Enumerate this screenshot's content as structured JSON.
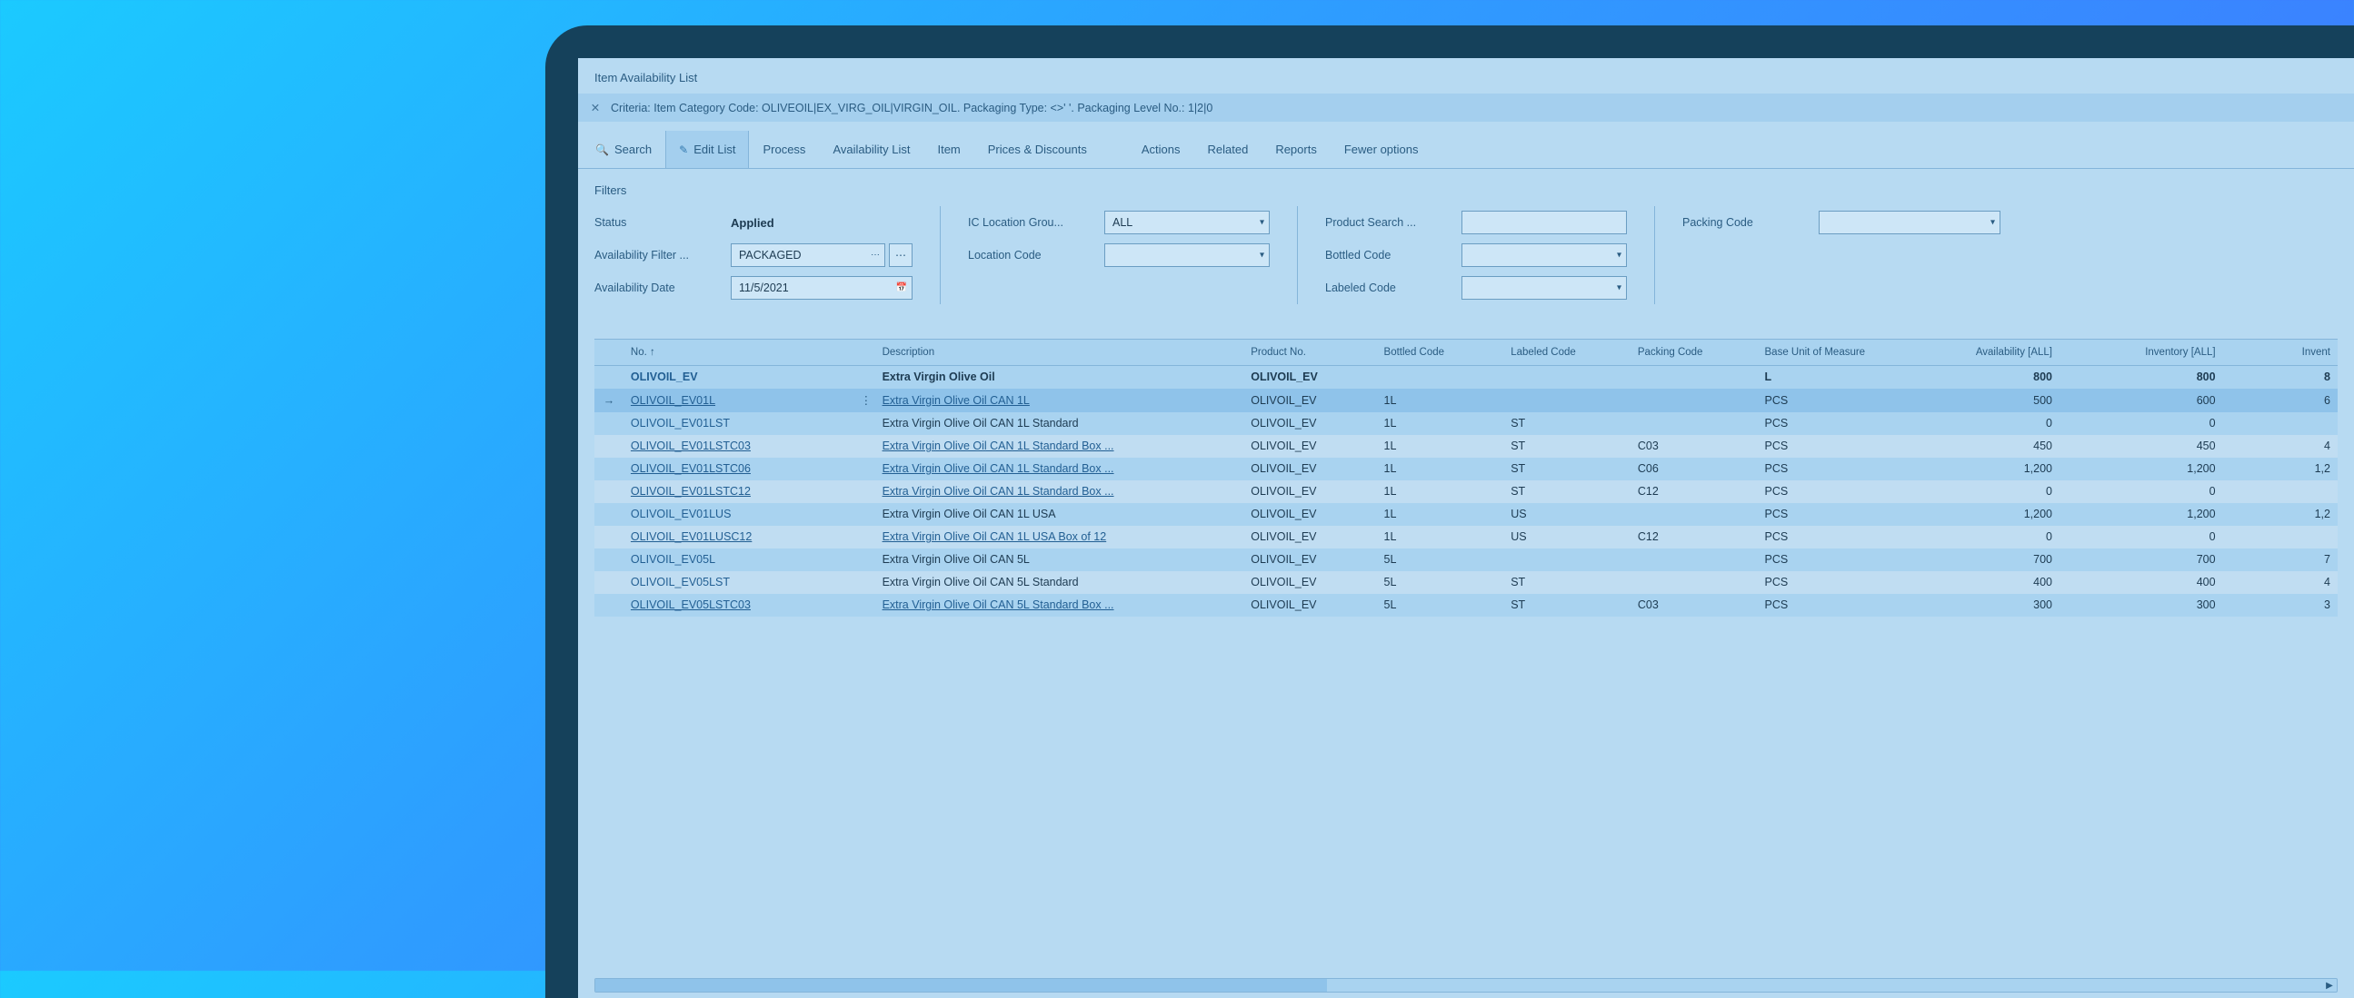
{
  "page": {
    "title": "Item Availability List"
  },
  "criteria": {
    "text": "Criteria: Item Category Code: OLIVEOIL|EX_VIRG_OIL|VIRGIN_OIL. Packaging Type: <>' '. Packaging Level No.: 1|2|0"
  },
  "toolbar": {
    "search": "Search",
    "editList": "Edit List",
    "process": "Process",
    "availabilityList": "Availability List",
    "item": "Item",
    "prices": "Prices & Discounts",
    "actions": "Actions",
    "related": "Related",
    "reports": "Reports",
    "fewer": "Fewer options"
  },
  "filters": {
    "title": "Filters",
    "status_label": "Status",
    "status_value": "Applied",
    "availFilter_label": "Availability Filter ...",
    "availFilter_value": "PACKAGED",
    "availDate_label": "Availability Date",
    "availDate_value": "11/5/2021",
    "icLocGroup_label": "IC Location Grou...",
    "icLocGroup_value": "ALL",
    "locCode_label": "Location Code",
    "locCode_value": "",
    "prodSearch_label": "Product Search ...",
    "prodSearch_value": "",
    "bottled_label": "Bottled Code",
    "bottled_value": "",
    "labeled_label": "Labeled Code",
    "labeled_value": "",
    "packing_label": "Packing Code",
    "packing_value": ""
  },
  "table": {
    "columns": {
      "no": "No. ↑",
      "desc": "Description",
      "prodno": "Product No.",
      "bottled": "Bottled Code",
      "labeled": "Labeled Code",
      "packing": "Packing Code",
      "buom": "Base Unit of Measure",
      "avail": "Availability [ALL]",
      "inv": "Inventory [ALL]",
      "inv2": "Invent"
    },
    "rows": [
      {
        "no": "OLIVOIL_EV",
        "desc": "Extra Virgin Olive Oil",
        "prodno": "OLIVOIL_EV",
        "bottled": "",
        "labeled": "",
        "packing": "",
        "buom": "L",
        "avail": "800",
        "inv": "800",
        "inv2": "8",
        "bold": true,
        "link": false
      },
      {
        "no": "OLIVOIL_EV01L",
        "desc": "Extra Virgin Olive Oil CAN 1L",
        "prodno": "OLIVOIL_EV",
        "bottled": "1L",
        "labeled": "",
        "packing": "",
        "buom": "PCS",
        "avail": "500",
        "inv": "600",
        "inv2": "6",
        "sel": true,
        "link": true
      },
      {
        "no": "OLIVOIL_EV01LST",
        "desc": "Extra Virgin Olive Oil CAN 1L Standard",
        "prodno": "OLIVOIL_EV",
        "bottled": "1L",
        "labeled": "ST",
        "packing": "",
        "buom": "PCS",
        "avail": "0",
        "inv": "0",
        "inv2": "",
        "link": false
      },
      {
        "no": "OLIVOIL_EV01LSTC03",
        "desc": "Extra Virgin Olive Oil CAN 1L Standard Box ...",
        "prodno": "OLIVOIL_EV",
        "bottled": "1L",
        "labeled": "ST",
        "packing": "C03",
        "buom": "PCS",
        "avail": "450",
        "inv": "450",
        "inv2": "4",
        "link": true,
        "zebra": true
      },
      {
        "no": "OLIVOIL_EV01LSTC06",
        "desc": "Extra Virgin Olive Oil CAN 1L Standard Box ...",
        "prodno": "OLIVOIL_EV",
        "bottled": "1L",
        "labeled": "ST",
        "packing": "C06",
        "buom": "PCS",
        "avail": "1,200",
        "inv": "1,200",
        "inv2": "1,2",
        "link": true
      },
      {
        "no": "OLIVOIL_EV01LSTC12",
        "desc": "Extra Virgin Olive Oil CAN 1L Standard Box ...",
        "prodno": "OLIVOIL_EV",
        "bottled": "1L",
        "labeled": "ST",
        "packing": "C12",
        "buom": "PCS",
        "avail": "0",
        "inv": "0",
        "inv2": "",
        "link": true,
        "zebra": true
      },
      {
        "no": "OLIVOIL_EV01LUS",
        "desc": "Extra Virgin Olive Oil CAN 1L USA",
        "prodno": "OLIVOIL_EV",
        "bottled": "1L",
        "labeled": "US",
        "packing": "",
        "buom": "PCS",
        "avail": "1,200",
        "inv": "1,200",
        "inv2": "1,2",
        "link": false
      },
      {
        "no": "OLIVOIL_EV01LUSC12",
        "desc": "Extra Virgin Olive Oil CAN 1L USA Box of 12",
        "prodno": "OLIVOIL_EV",
        "bottled": "1L",
        "labeled": "US",
        "packing": "C12",
        "buom": "PCS",
        "avail": "0",
        "inv": "0",
        "inv2": "",
        "link": true,
        "zebra": true
      },
      {
        "no": "OLIVOIL_EV05L",
        "desc": "Extra Virgin Olive Oil CAN 5L",
        "prodno": "OLIVOIL_EV",
        "bottled": "5L",
        "labeled": "",
        "packing": "",
        "buom": "PCS",
        "avail": "700",
        "inv": "700",
        "inv2": "7",
        "link": false
      },
      {
        "no": "OLIVOIL_EV05LST",
        "desc": "Extra Virgin Olive Oil CAN 5L Standard",
        "prodno": "OLIVOIL_EV",
        "bottled": "5L",
        "labeled": "ST",
        "packing": "",
        "buom": "PCS",
        "avail": "400",
        "inv": "400",
        "inv2": "4",
        "link": false,
        "zebra": true
      },
      {
        "no": "OLIVOIL_EV05LSTC03",
        "desc": "Extra Virgin Olive Oil CAN 5L Standard Box ...",
        "prodno": "OLIVOIL_EV",
        "bottled": "5L",
        "labeled": "ST",
        "packing": "C03",
        "buom": "PCS",
        "avail": "300",
        "inv": "300",
        "inv2": "3",
        "link": true
      }
    ]
  },
  "colors": {
    "gradient_a": "#1bcaff",
    "gradient_b": "#2e9dff",
    "gradient_c": "#466bff",
    "frame": "#15415b",
    "panel": "#b7daf2",
    "bar": "#a4cfee",
    "border": "#84b5da",
    "text": "#24567a",
    "link": "#225f93",
    "sel": "#8fc3ea",
    "zebra": "#c0ddf2",
    "input": "#cde6f7"
  }
}
